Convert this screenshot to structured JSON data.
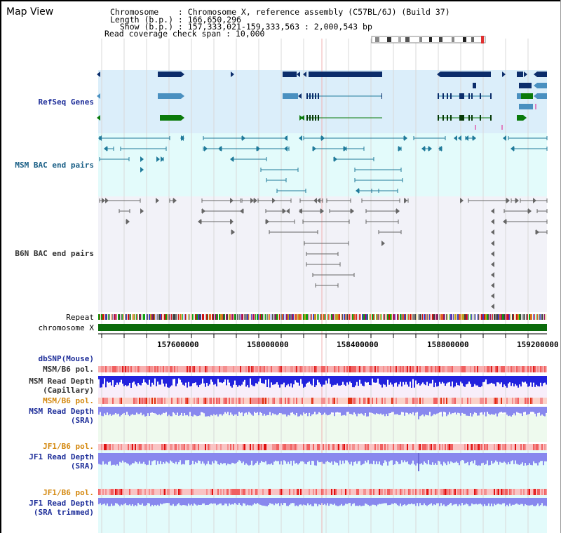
{
  "header": {
    "title": "Map View",
    "lines": [
      "Chromosome    : Chromosome X, reference assembly (C57BL/6J) (Build 37)",
      "Length (b.p.) : 166,650,296",
      "  Show (b.p.) : 157,333,021-159,333,563 : 2,000,543 bp",
      "Read coverage check span : 10,000"
    ]
  },
  "tracks": {
    "refseq": "RefSeq Genes",
    "msm_bac": "MSM BAC end pairs",
    "b6n_bac": "B6N BAC end pairs",
    "repeat": "Repeat",
    "chromosome": "chromosome X",
    "dbsnp": "dbSNP(Mouse)",
    "msm_b6_pol_1": "MSM/B6 pol.",
    "msm_depth_cap_1": "MSM Read Depth",
    "msm_depth_cap_2": "(Capillary)",
    "msm_b6_pol_2": "MSM/B6 pol.",
    "msm_depth_sra_1": "MSM Read Depth",
    "msm_depth_sra_2": "(SRA)",
    "jf1_pol_1": "JF1/B6 pol.",
    "jf1_depth_sra_1": "JF1 Read Depth",
    "jf1_depth_sra_2": "(SRA)",
    "jf1_pol_2": "JF1/B6 pol.",
    "jf1_trim_1": "JF1 Read Depth",
    "jf1_trim_2": "(SRA trimmed)"
  },
  "ruler": {
    "ticks": [
      "157600000",
      "158000000",
      "158400000",
      "158800000",
      "159200000"
    ]
  },
  "colors": {
    "refseq_bg": "#dbeefa",
    "msm_bac_bg": "#e3fbfb",
    "b6n_bac_bg": "#f2f2f8",
    "chromosome": "#0c6b0c",
    "gene_navy": "#0c2d6b",
    "gene_blue": "#4a90c0",
    "gene_green": "#0a7a0a",
    "msm_line": "#1f7a9a",
    "b6n_line": "#666666",
    "depth_blue": "#2222dd",
    "depth_light": "#8888ee"
  }
}
